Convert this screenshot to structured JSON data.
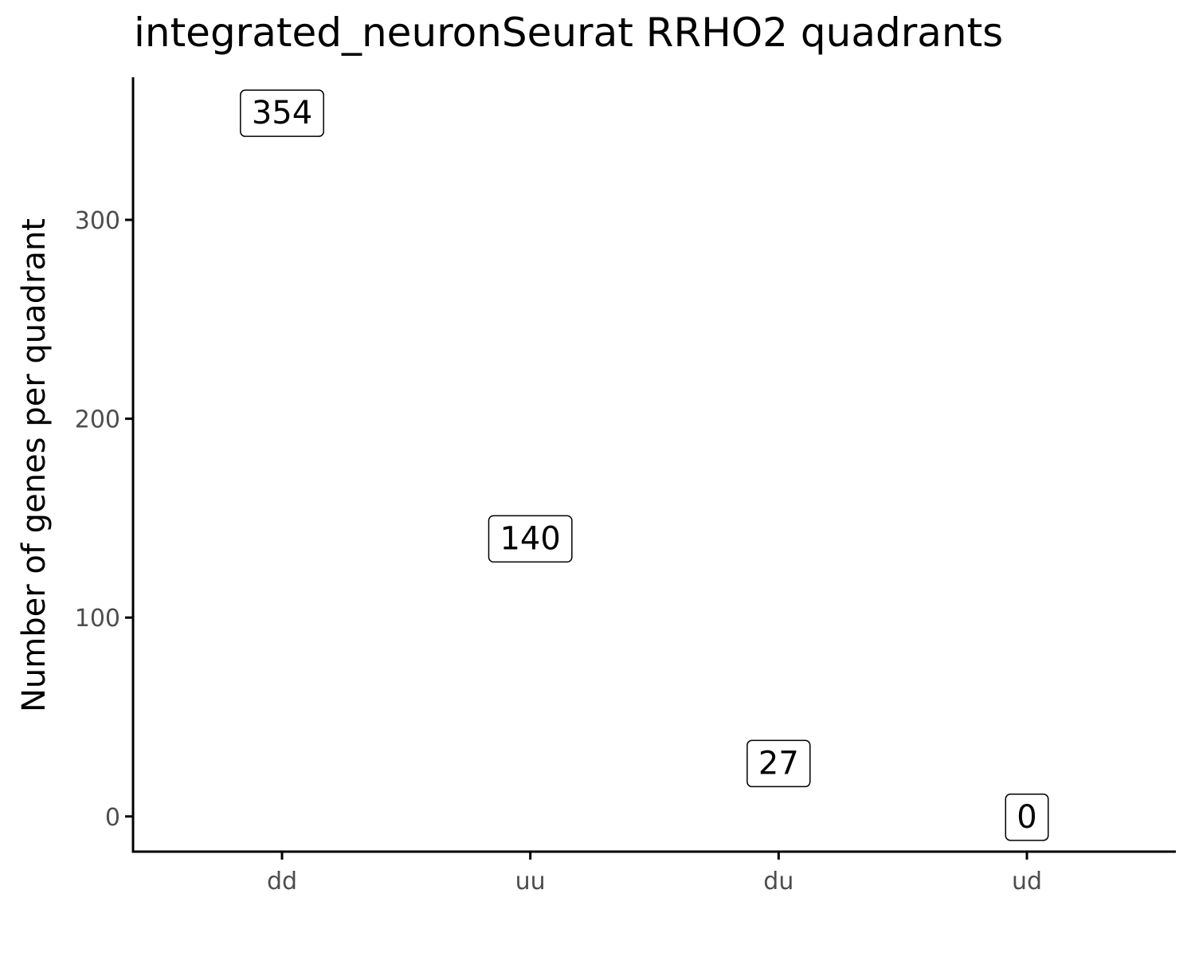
{
  "chart_data": {
    "type": "scatter",
    "title": "integrated_neuronSeurat RRHO2 quadrants",
    "xlabel": "",
    "ylabel": "Number of genes per quadrant",
    "categories": [
      "dd",
      "uu",
      "du",
      "ud"
    ],
    "values": [
      354,
      140,
      27,
      0
    ],
    "labels": [
      "354",
      "140",
      "27",
      "0"
    ],
    "ylim": [
      -17.7,
      371.7
    ],
    "yticks": [
      0,
      100,
      200,
      300
    ],
    "grid": false,
    "legend": "none",
    "colors": {
      "axis": "#000000",
      "tick_label": "#4d4d4d",
      "label_border": "#000000",
      "label_fill": "#ffffff"
    }
  }
}
